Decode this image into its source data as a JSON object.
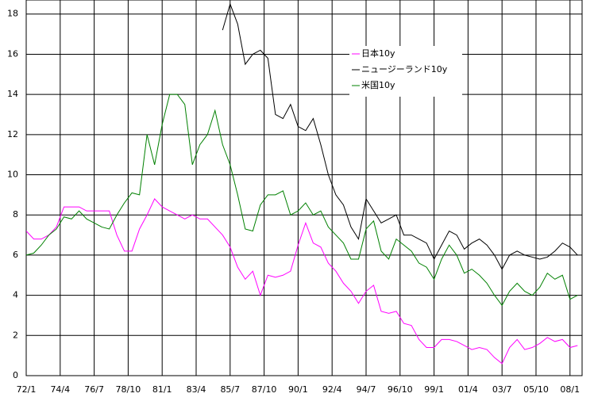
{
  "chart_data": {
    "type": "line",
    "x": [
      1972,
      1972.5,
      1973,
      1973.5,
      1974,
      1974.5,
      1975,
      1975.5,
      1976,
      1976.5,
      1977,
      1977.5,
      1978,
      1978.5,
      1979,
      1979.5,
      1980,
      1980.5,
      1981,
      1981.5,
      1982,
      1982.5,
      1983,
      1983.5,
      1984,
      1984.5,
      1985,
      1985.5,
      1986,
      1986.5,
      1987,
      1987.5,
      1988,
      1988.5,
      1989,
      1989.5,
      1990,
      1990.5,
      1991,
      1991.5,
      1992,
      1992.5,
      1993,
      1993.5,
      1994,
      1994.5,
      1995,
      1995.5,
      1996,
      1996.5,
      1997,
      1997.5,
      1998,
      1998.5,
      1999,
      1999.5,
      2000,
      2000.5,
      2001,
      2001.5,
      2002,
      2002.5,
      2003,
      2003.5,
      2004,
      2004.5,
      2005,
      2005.5,
      2006,
      2006.5,
      2007,
      2007.5,
      2008,
      2008.5
    ],
    "series": [
      {
        "name": "日本10y",
        "color": "#ff00ff",
        "values": [
          7.2,
          6.8,
          6.8,
          7.0,
          7.4,
          8.4,
          8.4,
          8.4,
          8.2,
          8.2,
          8.2,
          8.2,
          7.0,
          6.2,
          6.2,
          7.3,
          8.0,
          8.8,
          8.4,
          8.2,
          8.0,
          7.8,
          8.0,
          7.8,
          7.8,
          7.4,
          7.0,
          6.4,
          5.4,
          4.8,
          5.2,
          4.0,
          5.0,
          4.9,
          5.0,
          5.2,
          6.5,
          7.6,
          6.6,
          6.4,
          5.6,
          5.2,
          4.6,
          4.2,
          3.6,
          4.2,
          4.5,
          3.2,
          3.1,
          3.2,
          2.6,
          2.5,
          1.8,
          1.4,
          1.4,
          1.8,
          1.8,
          1.7,
          1.5,
          1.3,
          1.4,
          1.3,
          0.9,
          0.6,
          1.4,
          1.8,
          1.3,
          1.4,
          1.6,
          1.9,
          1.7,
          1.8,
          1.4,
          1.5
        ]
      },
      {
        "name": "ニュージーランド10y",
        "color": "#000000",
        "values": [
          null,
          null,
          null,
          null,
          null,
          null,
          null,
          null,
          null,
          null,
          null,
          null,
          null,
          null,
          null,
          null,
          null,
          null,
          null,
          null,
          null,
          null,
          null,
          null,
          null,
          null,
          17.2,
          18.5,
          17.5,
          15.5,
          16.0,
          16.2,
          15.8,
          13.0,
          12.8,
          13.5,
          12.4,
          12.2,
          12.8,
          11.5,
          10.0,
          9.0,
          8.5,
          7.4,
          6.8,
          8.8,
          8.2,
          7.6,
          7.8,
          8.0,
          7.0,
          7.0,
          6.8,
          6.6,
          5.8,
          6.5,
          7.2,
          7.0,
          6.3,
          6.6,
          6.8,
          6.5,
          6.0,
          5.3,
          6.0,
          6.2,
          6.0,
          5.9,
          5.8,
          5.9,
          6.2,
          6.6,
          6.4,
          6.0
        ]
      },
      {
        "name": "米国10y",
        "color": "#008000",
        "values": [
          6.0,
          6.1,
          6.5,
          7.0,
          7.3,
          7.9,
          7.8,
          8.2,
          7.8,
          7.6,
          7.4,
          7.3,
          8.0,
          8.6,
          9.1,
          9.0,
          12.0,
          10.5,
          12.5,
          14.0,
          14.0,
          13.5,
          10.5,
          11.5,
          12.0,
          13.2,
          11.5,
          10.5,
          9.0,
          7.3,
          7.2,
          8.5,
          9.0,
          9.0,
          9.2,
          8.0,
          8.2,
          8.6,
          8.0,
          8.2,
          7.4,
          7.0,
          6.6,
          5.8,
          5.8,
          7.3,
          7.7,
          6.2,
          5.8,
          6.8,
          6.5,
          6.2,
          5.6,
          5.4,
          4.8,
          5.8,
          6.5,
          6.0,
          5.1,
          5.3,
          5.0,
          4.6,
          4.0,
          3.5,
          4.2,
          4.6,
          4.2,
          4.0,
          4.4,
          5.1,
          4.8,
          5.0,
          3.8,
          4.0
        ]
      }
    ],
    "xlim": [
      1972,
      2008.8
    ],
    "xticks": [
      {
        "value": 1972,
        "label": "72/1"
      },
      {
        "value": 1974.25,
        "label": "74/4"
      },
      {
        "value": 1976.5,
        "label": "76/7"
      },
      {
        "value": 1978.75,
        "label": "78/10"
      },
      {
        "value": 1981,
        "label": "81/1"
      },
      {
        "value": 1983.25,
        "label": "83/4"
      },
      {
        "value": 1985.5,
        "label": "85/7"
      },
      {
        "value": 1987.75,
        "label": "87/10"
      },
      {
        "value": 1990,
        "label": "90/1"
      },
      {
        "value": 1992.25,
        "label": "92/4"
      },
      {
        "value": 1994.5,
        "label": "94/7"
      },
      {
        "value": 1996.75,
        "label": "96/10"
      },
      {
        "value": 1999,
        "label": "99/1"
      },
      {
        "value": 2001.25,
        "label": "01/4"
      },
      {
        "value": 2003.5,
        "label": "03/7"
      },
      {
        "value": 2005.75,
        "label": "05/10"
      },
      {
        "value": 2008,
        "label": "08/1"
      }
    ],
    "ylim": [
      0,
      18.7
    ],
    "yticks": [
      0,
      2,
      4,
      6,
      8,
      10,
      12,
      14,
      16,
      18
    ],
    "grid": true
  }
}
